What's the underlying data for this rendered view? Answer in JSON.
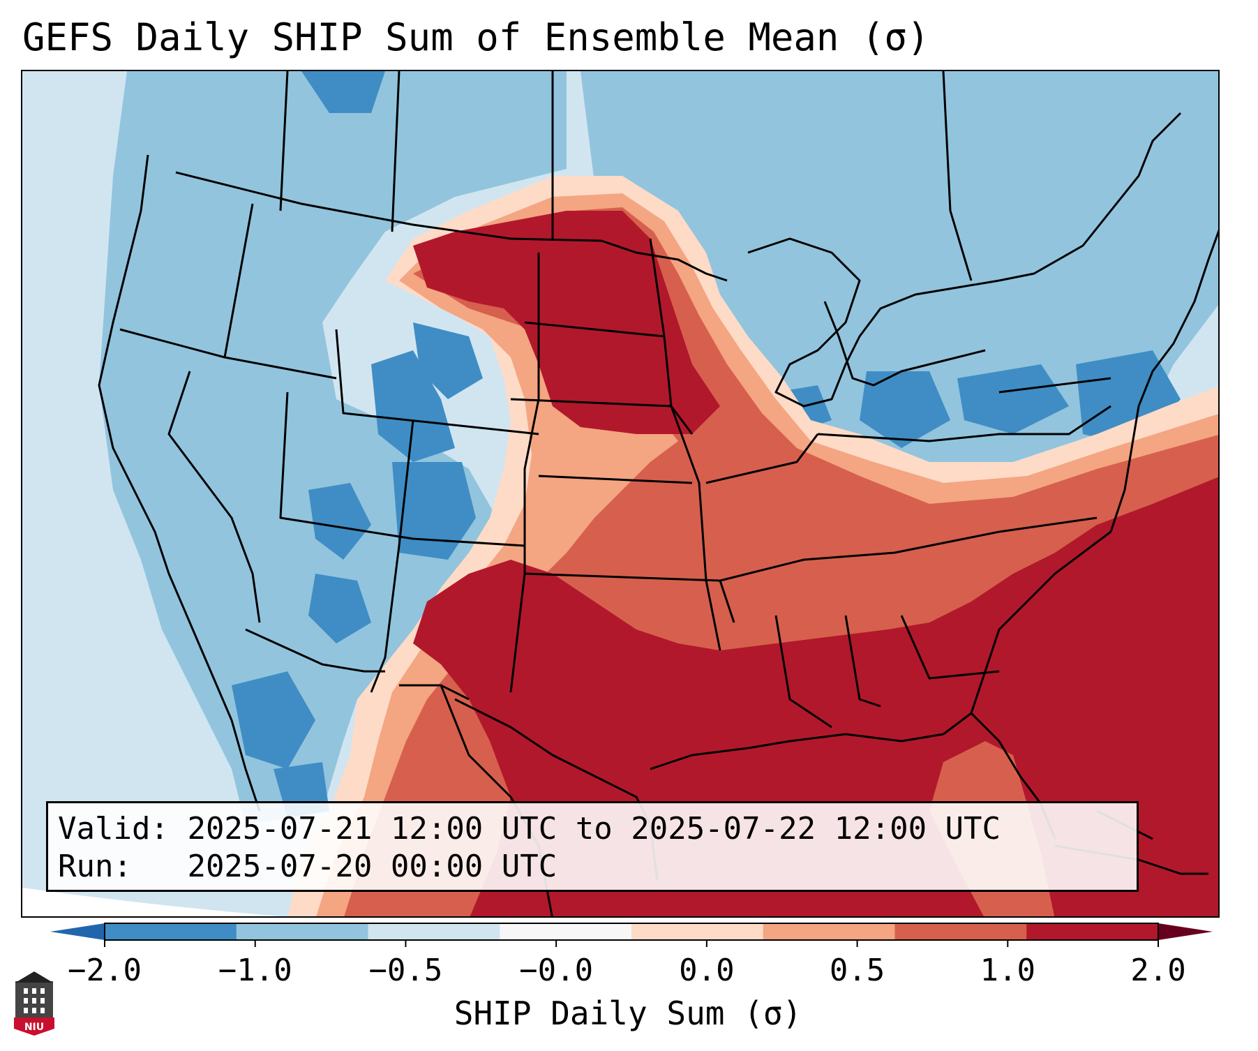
{
  "title": "GEFS Daily SHIP Sum of Ensemble Mean (σ)",
  "info": {
    "valid_label": "Valid:",
    "valid_value": "2025-07-21 12:00 UTC to 2025-07-22 12:00 UTC",
    "run_label": "Run:",
    "run_value": "2025-07-20 00:00 UTC"
  },
  "colorbar": {
    "label": "SHIP Daily Sum (σ)",
    "ticks": [
      "−2.0",
      "−1.0",
      "−0.5",
      "−0.0",
      "0.0",
      "0.5",
      "1.0",
      "2.0"
    ],
    "colors": [
      "#3f8dc4",
      "#92c4de",
      "#d1e5f0",
      "#f7f7f7",
      "#fddbc7",
      "#f4a582",
      "#d6604d",
      "#b2182b"
    ],
    "under_color": "#2166ac",
    "over_color": "#67001f"
  },
  "logo": {
    "text": "NIU"
  },
  "legend_colors": {
    "strong_negative": "#3f8dc4",
    "negative": "#92c4de",
    "weak_negative": "#d1e5f0",
    "weak_positive": "#fddbc7",
    "positive": "#f4a582",
    "strong_positive": "#d6604d",
    "very_strong_positive": "#b2182b"
  }
}
